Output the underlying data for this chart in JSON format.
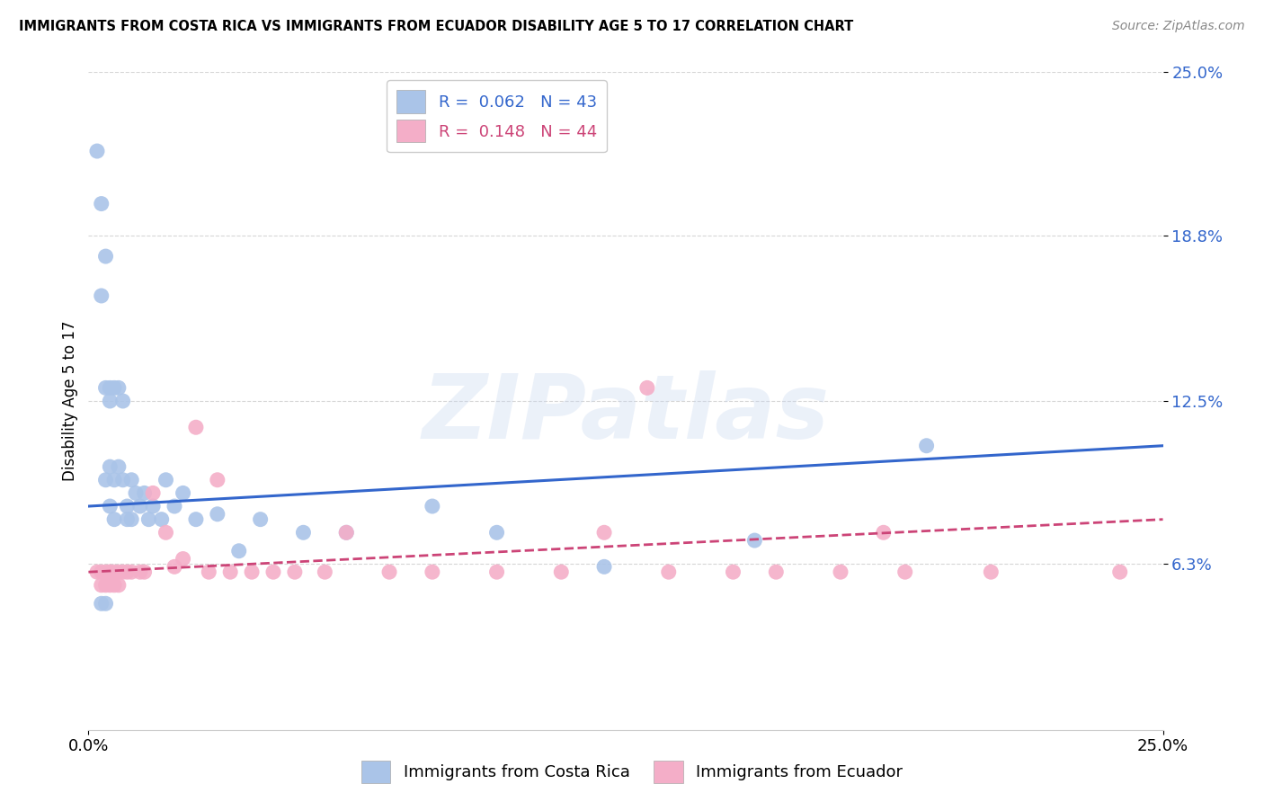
{
  "title": "IMMIGRANTS FROM COSTA RICA VS IMMIGRANTS FROM ECUADOR DISABILITY AGE 5 TO 17 CORRELATION CHART",
  "source": "Source: ZipAtlas.com",
  "ylabel": "Disability Age 5 to 17",
  "xmin": 0.0,
  "xmax": 0.25,
  "ymin": 0.0,
  "ymax": 0.25,
  "yticks": [
    0.063,
    0.125,
    0.188,
    0.25
  ],
  "ytick_labels": [
    "6.3%",
    "12.5%",
    "18.8%",
    "25.0%"
  ],
  "xtick_vals": [
    0.0,
    0.25
  ],
  "xtick_labels": [
    "0.0%",
    "25.0%"
  ],
  "costa_rica_color": "#aac4e8",
  "ecuador_color": "#f4aec8",
  "trendline_costa_rica_color": "#3366cc",
  "trendline_ecuador_color": "#cc4477",
  "background_color": "#ffffff",
  "grid_color": "#cccccc",
  "watermark_text": "ZIPatlas",
  "watermark_color": "#c8d8f0",
  "watermark_alpha": 0.35,
  "legend_label_cr": "R =  0.062   N = 43",
  "legend_label_ec": "R =  0.148   N = 44",
  "bottom_legend_cr": "Immigrants from Costa Rica",
  "bottom_legend_ec": "Immigrants from Ecuador",
  "costa_rica_x": [
    0.002,
    0.003,
    0.003,
    0.004,
    0.004,
    0.004,
    0.005,
    0.005,
    0.005,
    0.005,
    0.006,
    0.006,
    0.006,
    0.007,
    0.007,
    0.008,
    0.008,
    0.009,
    0.009,
    0.01,
    0.01,
    0.011,
    0.012,
    0.013,
    0.014,
    0.015,
    0.017,
    0.018,
    0.02,
    0.022,
    0.025,
    0.03,
    0.035,
    0.04,
    0.05,
    0.06,
    0.08,
    0.095,
    0.12,
    0.155,
    0.195,
    0.003,
    0.004
  ],
  "costa_rica_y": [
    0.22,
    0.2,
    0.165,
    0.13,
    0.18,
    0.095,
    0.13,
    0.125,
    0.1,
    0.085,
    0.095,
    0.13,
    0.08,
    0.13,
    0.1,
    0.125,
    0.095,
    0.085,
    0.08,
    0.095,
    0.08,
    0.09,
    0.085,
    0.09,
    0.08,
    0.085,
    0.08,
    0.095,
    0.085,
    0.09,
    0.08,
    0.082,
    0.068,
    0.08,
    0.075,
    0.075,
    0.085,
    0.075,
    0.062,
    0.072,
    0.108,
    0.048,
    0.048
  ],
  "ecuador_x": [
    0.002,
    0.003,
    0.003,
    0.004,
    0.004,
    0.005,
    0.005,
    0.005,
    0.006,
    0.006,
    0.007,
    0.007,
    0.008,
    0.009,
    0.01,
    0.012,
    0.013,
    0.015,
    0.018,
    0.02,
    0.022,
    0.025,
    0.028,
    0.03,
    0.033,
    0.038,
    0.043,
    0.048,
    0.055,
    0.06,
    0.07,
    0.08,
    0.095,
    0.11,
    0.12,
    0.135,
    0.15,
    0.16,
    0.175,
    0.19,
    0.21,
    0.13,
    0.185,
    0.24
  ],
  "ecuador_y": [
    0.06,
    0.06,
    0.055,
    0.06,
    0.055,
    0.06,
    0.06,
    0.055,
    0.06,
    0.055,
    0.06,
    0.055,
    0.06,
    0.06,
    0.06,
    0.06,
    0.06,
    0.09,
    0.075,
    0.062,
    0.065,
    0.115,
    0.06,
    0.095,
    0.06,
    0.06,
    0.06,
    0.06,
    0.06,
    0.075,
    0.06,
    0.06,
    0.06,
    0.06,
    0.075,
    0.06,
    0.06,
    0.06,
    0.06,
    0.06,
    0.06,
    0.13,
    0.075,
    0.06
  ]
}
